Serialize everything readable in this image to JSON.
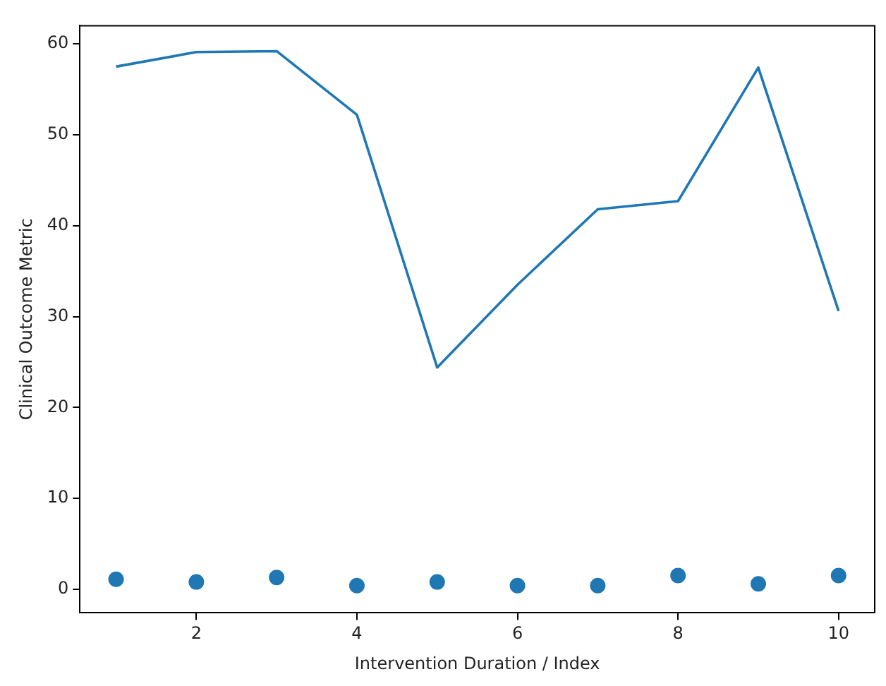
{
  "chart_data": {
    "type": "line",
    "xlabel": "Intervention Duration / Index",
    "ylabel": "Clinical Outcome Metric",
    "x": [
      1,
      2,
      3,
      4,
      5,
      6,
      7,
      8,
      9,
      10
    ],
    "series": [
      {
        "color": "#1f77b4",
        "values": [
          57.5,
          59.1,
          59.2,
          52.2,
          24.4,
          33.5,
          41.8,
          42.7,
          57.4,
          30.6
        ]
      },
      {
        "type": "scatter",
        "color": "#1f77b4",
        "marker": "circle",
        "values": [
          1.1,
          0.8,
          1.3,
          0.4,
          0.8,
          0.4,
          0.4,
          1.5,
          0.6,
          1.5
        ]
      }
    ],
    "xlim": [
      0.55,
      10.45
    ],
    "xticks": [
      2,
      4,
      6,
      8,
      10
    ],
    "ylim": [
      -2.6,
      62.0
    ],
    "yticks": [
      0,
      10,
      20,
      30,
      40,
      50,
      60
    ],
    "grid": false,
    "legend": false
  }
}
